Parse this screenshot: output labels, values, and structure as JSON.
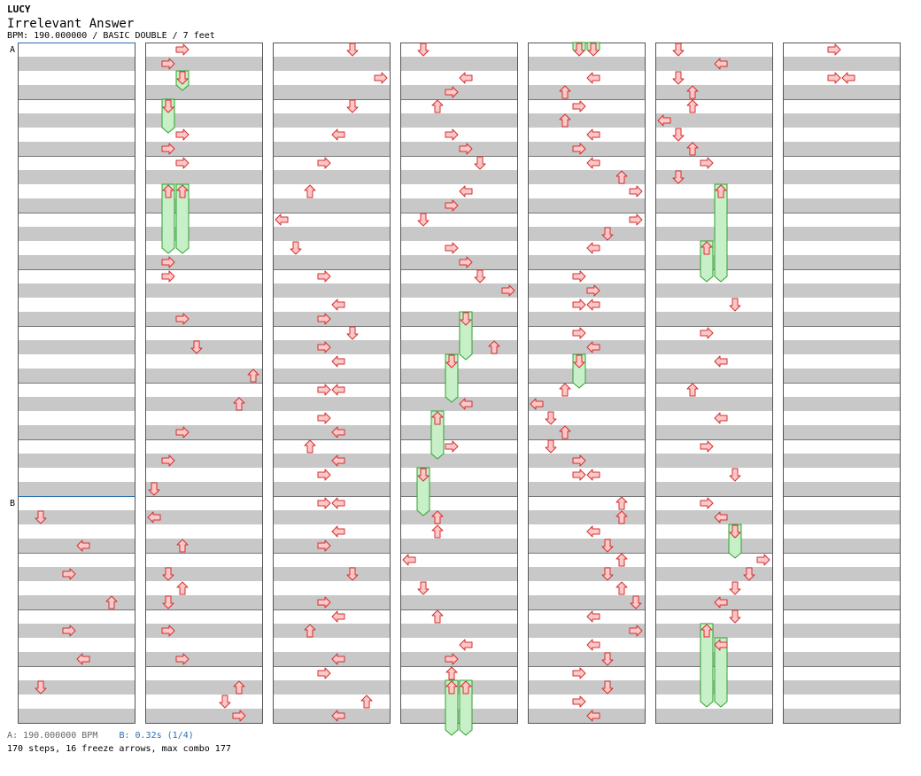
{
  "artist": "LUCY",
  "title": "Irrelevant Answer",
  "bpm_line": "BPM: 190.000000 / BASIC DOUBLE / 7 feet",
  "markers": [
    {
      "label": "A",
      "column": 0,
      "measure": 0
    },
    {
      "label": "B",
      "column": 0,
      "measure": 8
    }
  ],
  "footer": {
    "bpm_a": "A: 190.000000 BPM",
    "bpm_b": "B: 0.32s (1/4)",
    "stats": "170 steps, 16 freeze arrows, max combo 177"
  },
  "colors": {
    "stripe": "#c8c8c8",
    "arrow_fill": "#ffc8c8",
    "arrow_stroke": "#d03030",
    "freeze_fill": "#c8f0c8",
    "freeze_stroke": "#30a030",
    "marker_line": "#2a6fb5"
  },
  "chart_data": {
    "type": "step chart",
    "columns_count": 7,
    "measures_per_column": 12,
    "lanes": [
      "L-left",
      "L-down",
      "L-up",
      "L-right",
      "R-left",
      "R-down",
      "R-up",
      "R-right"
    ],
    "arrows": [
      [
        1,
        0,
        2,
        "right",
        null
      ],
      [
        1,
        1,
        1,
        "right",
        null
      ],
      [
        1,
        2,
        2,
        "down",
        2.5
      ],
      [
        1,
        4,
        1,
        "down",
        5.5
      ],
      [
        1,
        6,
        2,
        "right",
        null
      ],
      [
        1,
        7,
        1,
        "right",
        null
      ],
      [
        1,
        8,
        2,
        "right",
        null
      ],
      [
        1,
        10,
        1,
        "up",
        14
      ],
      [
        1,
        10,
        2,
        "up",
        14
      ],
      [
        1,
        15,
        1,
        "right",
        null
      ],
      [
        1,
        16,
        1,
        "right",
        null
      ],
      [
        1,
        19,
        2,
        "right",
        null
      ],
      [
        1,
        21,
        3,
        "down",
        null
      ],
      [
        1,
        23,
        7,
        "up",
        null
      ],
      [
        1,
        25,
        6,
        "up",
        null
      ],
      [
        1,
        27,
        2,
        "right",
        null
      ],
      [
        1,
        29,
        1,
        "right",
        null
      ],
      [
        1,
        31,
        0,
        "down",
        null
      ],
      [
        1,
        33,
        0,
        "left",
        null
      ],
      [
        1,
        35,
        2,
        "up",
        null
      ],
      [
        1,
        37,
        1,
        "down",
        null
      ],
      [
        1,
        38,
        2,
        "up",
        null
      ],
      [
        1,
        39,
        1,
        "down",
        null
      ],
      [
        1,
        41,
        1,
        "right",
        null
      ],
      [
        1,
        43,
        2,
        "right",
        null
      ],
      [
        1,
        45,
        6,
        "up",
        null
      ],
      [
        1,
        46,
        5,
        "down",
        null
      ],
      [
        1,
        47,
        6,
        "right",
        null
      ],
      [
        0,
        33,
        1,
        "down",
        null
      ],
      [
        0,
        35,
        4,
        "left",
        null
      ],
      [
        0,
        37,
        3,
        "right",
        null
      ],
      [
        0,
        39,
        6,
        "up",
        null
      ],
      [
        0,
        41,
        3,
        "right",
        null
      ],
      [
        0,
        43,
        4,
        "left",
        null
      ],
      [
        0,
        45,
        1,
        "down",
        null
      ],
      [
        2,
        0,
        5,
        "down",
        null
      ],
      [
        2,
        2,
        7,
        "right",
        null
      ],
      [
        2,
        4,
        5,
        "down",
        null
      ],
      [
        2,
        6,
        4,
        "left",
        null
      ],
      [
        2,
        8,
        3,
        "right",
        null
      ],
      [
        2,
        10,
        2,
        "up",
        null
      ],
      [
        2,
        12,
        0,
        "left",
        null
      ],
      [
        2,
        14,
        1,
        "down",
        null
      ],
      [
        2,
        16,
        3,
        "right",
        null
      ],
      [
        2,
        18,
        4,
        "left",
        null
      ],
      [
        2,
        19,
        3,
        "right",
        null
      ],
      [
        2,
        20,
        5,
        "down",
        null
      ],
      [
        2,
        21,
        3,
        "right",
        null
      ],
      [
        2,
        22,
        4,
        "left",
        null
      ],
      [
        2,
        24,
        3,
        "right",
        null
      ],
      [
        2,
        24,
        4,
        "left",
        null
      ],
      [
        2,
        26,
        3,
        "right",
        null
      ],
      [
        2,
        27,
        4,
        "left",
        null
      ],
      [
        2,
        28,
        2,
        "up",
        null
      ],
      [
        2,
        29,
        4,
        "left",
        null
      ],
      [
        2,
        30,
        3,
        "right",
        null
      ],
      [
        2,
        32,
        3,
        "right",
        null
      ],
      [
        2,
        32,
        4,
        "left",
        null
      ],
      [
        2,
        34,
        4,
        "left",
        null
      ],
      [
        2,
        35,
        3,
        "right",
        null
      ],
      [
        2,
        37,
        5,
        "down",
        null
      ],
      [
        2,
        39,
        3,
        "right",
        null
      ],
      [
        2,
        40,
        4,
        "left",
        null
      ],
      [
        2,
        41,
        2,
        "up",
        null
      ],
      [
        2,
        43,
        4,
        "left",
        null
      ],
      [
        2,
        44,
        3,
        "right",
        null
      ],
      [
        2,
        46,
        6,
        "up",
        null
      ],
      [
        2,
        47,
        4,
        "left",
        null
      ],
      [
        3,
        0,
        1,
        "down",
        null
      ],
      [
        3,
        2,
        4,
        "left",
        null
      ],
      [
        3,
        3,
        3,
        "right",
        null
      ],
      [
        3,
        4,
        2,
        "up",
        null
      ],
      [
        3,
        6,
        3,
        "right",
        null
      ],
      [
        3,
        7,
        4,
        "right",
        null
      ],
      [
        3,
        8,
        5,
        "down",
        null
      ],
      [
        3,
        10,
        4,
        "left",
        null
      ],
      [
        3,
        11,
        3,
        "right",
        null
      ],
      [
        3,
        12,
        1,
        "down",
        null
      ],
      [
        3,
        14,
        3,
        "right",
        null
      ],
      [
        3,
        15,
        4,
        "right",
        null
      ],
      [
        3,
        16,
        5,
        "down",
        null
      ],
      [
        3,
        17,
        7,
        "right",
        null
      ],
      [
        3,
        19,
        4,
        "down",
        21.5
      ],
      [
        3,
        21,
        6,
        "up",
        null
      ],
      [
        3,
        22,
        3,
        "down",
        24.5
      ],
      [
        3,
        25,
        4,
        "left",
        null
      ],
      [
        3,
        26,
        2,
        "up",
        28.5
      ],
      [
        3,
        28,
        3,
        "right",
        null
      ],
      [
        3,
        30,
        1,
        "down",
        32.5
      ],
      [
        3,
        33,
        2,
        "up",
        null
      ],
      [
        3,
        34,
        2,
        "up",
        null
      ],
      [
        3,
        36,
        0,
        "left",
        null
      ],
      [
        3,
        38,
        1,
        "down",
        null
      ],
      [
        3,
        40,
        2,
        "up",
        null
      ],
      [
        3,
        42,
        4,
        "left",
        null
      ],
      [
        3,
        43,
        3,
        "right",
        null
      ],
      [
        3,
        44,
        3,
        "up",
        null
      ],
      [
        3,
        45,
        3,
        "up",
        48
      ],
      [
        3,
        45,
        4,
        "up",
        48
      ],
      [
        4,
        0,
        3,
        "down",
        0
      ],
      [
        4,
        0,
        4,
        "down",
        0
      ],
      [
        4,
        2,
        4,
        "left",
        null
      ],
      [
        4,
        3,
        2,
        "up",
        null
      ],
      [
        4,
        4,
        3,
        "right",
        null
      ],
      [
        4,
        5,
        2,
        "up",
        null
      ],
      [
        4,
        6,
        4,
        "left",
        null
      ],
      [
        4,
        7,
        3,
        "right",
        null
      ],
      [
        4,
        8,
        4,
        "left",
        null
      ],
      [
        4,
        9,
        6,
        "up",
        null
      ],
      [
        4,
        10,
        7,
        "right",
        null
      ],
      [
        4,
        12,
        7,
        "right",
        null
      ],
      [
        4,
        13,
        5,
        "down",
        null
      ],
      [
        4,
        14,
        4,
        "left",
        null
      ],
      [
        4,
        16,
        3,
        "right",
        null
      ],
      [
        4,
        17,
        4,
        "right",
        null
      ],
      [
        4,
        18,
        3,
        "right",
        null
      ],
      [
        4,
        18,
        4,
        "left",
        null
      ],
      [
        4,
        20,
        3,
        "right",
        null
      ],
      [
        4,
        21,
        4,
        "left",
        null
      ],
      [
        4,
        22,
        3,
        "down",
        23.5
      ],
      [
        4,
        24,
        2,
        "up",
        null
      ],
      [
        4,
        25,
        0,
        "left",
        null
      ],
      [
        4,
        26,
        1,
        "down",
        null
      ],
      [
        4,
        27,
        2,
        "up",
        null
      ],
      [
        4,
        28,
        1,
        "down",
        null
      ],
      [
        4,
        29,
        3,
        "right",
        null
      ],
      [
        4,
        30,
        3,
        "right",
        null
      ],
      [
        4,
        30,
        4,
        "left",
        null
      ],
      [
        4,
        32,
        6,
        "up",
        null
      ],
      [
        4,
        33,
        6,
        "up",
        null
      ],
      [
        4,
        34,
        4,
        "left",
        null
      ],
      [
        4,
        35,
        5,
        "down",
        null
      ],
      [
        4,
        36,
        6,
        "up",
        null
      ],
      [
        4,
        37,
        5,
        "down",
        null
      ],
      [
        4,
        38,
        6,
        "up",
        null
      ],
      [
        4,
        39,
        7,
        "down",
        null
      ],
      [
        4,
        40,
        4,
        "left",
        null
      ],
      [
        4,
        41,
        7,
        "right",
        null
      ],
      [
        4,
        42,
        4,
        "left",
        null
      ],
      [
        4,
        43,
        5,
        "down",
        null
      ],
      [
        4,
        44,
        3,
        "right",
        null
      ],
      [
        4,
        45,
        5,
        "down",
        null
      ],
      [
        4,
        46,
        3,
        "right",
        null
      ],
      [
        4,
        47,
        4,
        "left",
        null
      ],
      [
        5,
        0,
        1,
        "down",
        null
      ],
      [
        5,
        1,
        4,
        "left",
        null
      ],
      [
        5,
        2,
        1,
        "down",
        null
      ],
      [
        5,
        3,
        2,
        "up",
        null
      ],
      [
        5,
        4,
        2,
        "up",
        null
      ],
      [
        5,
        5,
        0,
        "left",
        null
      ],
      [
        5,
        6,
        1,
        "down",
        null
      ],
      [
        5,
        7,
        2,
        "up",
        null
      ],
      [
        5,
        8,
        3,
        "right",
        null
      ],
      [
        5,
        9,
        1,
        "down",
        null
      ],
      [
        5,
        10,
        4,
        "up",
        16
      ],
      [
        5,
        14,
        3,
        "up",
        16
      ],
      [
        5,
        18,
        5,
        "down",
        null
      ],
      [
        5,
        20,
        3,
        "right",
        null
      ],
      [
        5,
        22,
        4,
        "left",
        null
      ],
      [
        5,
        24,
        2,
        "up",
        null
      ],
      [
        5,
        26,
        4,
        "left",
        null
      ],
      [
        5,
        28,
        3,
        "right",
        null
      ],
      [
        5,
        30,
        5,
        "down",
        null
      ],
      [
        5,
        32,
        3,
        "right",
        null
      ],
      [
        5,
        33,
        4,
        "left",
        null
      ],
      [
        5,
        34,
        5,
        "down",
        35.5
      ],
      [
        5,
        36,
        7,
        "right",
        null
      ],
      [
        5,
        37,
        6,
        "down",
        null
      ],
      [
        5,
        38,
        5,
        "down",
        null
      ],
      [
        5,
        39,
        4,
        "left",
        null
      ],
      [
        5,
        40,
        5,
        "down",
        null
      ],
      [
        5,
        41,
        3,
        "up",
        46
      ],
      [
        5,
        42,
        4,
        "left",
        46
      ],
      [
        6,
        0,
        3,
        "right",
        null
      ],
      [
        6,
        2,
        3,
        "right",
        null
      ],
      [
        6,
        2,
        4,
        "left",
        null
      ]
    ]
  }
}
